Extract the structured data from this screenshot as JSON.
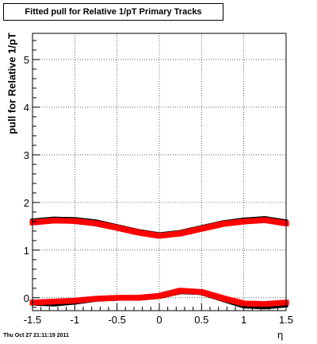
{
  "title": "Fitted pull for Relative 1/pT  Primary Tracks",
  "timestamp": "Thu Oct 27 21:11:19 2011",
  "chart_data": {
    "type": "scatter",
    "title": "Fitted pull for Relative 1/pT  Primary Tracks",
    "xlabel": "η",
    "ylabel": "pull for Relative 1/pT",
    "xlim": [
      -1.5,
      1.5
    ],
    "ylim": [
      -0.27,
      5.55
    ],
    "x_ticks": [
      -1.5,
      -1,
      -0.5,
      0,
      0.5,
      1,
      1.5
    ],
    "x_tick_labels": [
      "-1.5",
      "-1",
      "-0.5",
      "0",
      "0.5",
      "1",
      "1.5"
    ],
    "y_ticks": [
      0,
      1,
      2,
      3,
      4,
      5
    ],
    "y_tick_labels": [
      "0",
      "1",
      "2",
      "3",
      "4",
      "5"
    ],
    "grid": true,
    "series": [
      {
        "color": "#000000",
        "x": [
          -1.5,
          -1.25,
          -1.0,
          -0.75,
          -0.5,
          -0.25,
          0.0,
          0.25,
          0.5,
          0.75,
          1.0,
          1.25,
          1.5
        ],
        "y": [
          1.62,
          1.66,
          1.65,
          1.6,
          1.5,
          1.4,
          1.33,
          1.38,
          1.48,
          1.58,
          1.64,
          1.67,
          1.6
        ]
      },
      {
        "color": "#ff0000",
        "x": [
          -1.5,
          -1.25,
          -1.0,
          -0.75,
          -0.5,
          -0.25,
          0.0,
          0.25,
          0.5,
          0.75,
          1.0,
          1.25,
          1.5
        ],
        "y": [
          1.58,
          1.62,
          1.61,
          1.56,
          1.47,
          1.37,
          1.3,
          1.35,
          1.45,
          1.55,
          1.6,
          1.63,
          1.56
        ]
      },
      {
        "color": "#000000",
        "x": [
          -1.5,
          -1.25,
          -1.0,
          -0.75,
          -0.5,
          -0.25,
          0.0,
          0.25,
          0.5,
          0.75,
          1.0,
          1.25,
          1.5
        ],
        "y": [
          -0.12,
          -0.14,
          -0.1,
          -0.04,
          -0.02,
          -0.02,
          0.02,
          0.12,
          0.1,
          -0.04,
          -0.18,
          -0.2,
          -0.16
        ]
      },
      {
        "color": "#ff0000",
        "x": [
          -1.5,
          -1.25,
          -1.0,
          -0.75,
          -0.5,
          -0.25,
          0.0,
          0.25,
          0.5,
          0.75,
          1.0,
          1.25,
          1.5
        ],
        "y": [
          -0.1,
          -0.08,
          -0.06,
          -0.02,
          0.0,
          0.0,
          0.04,
          0.15,
          0.12,
          -0.01,
          -0.12,
          -0.13,
          -0.1
        ]
      }
    ]
  }
}
